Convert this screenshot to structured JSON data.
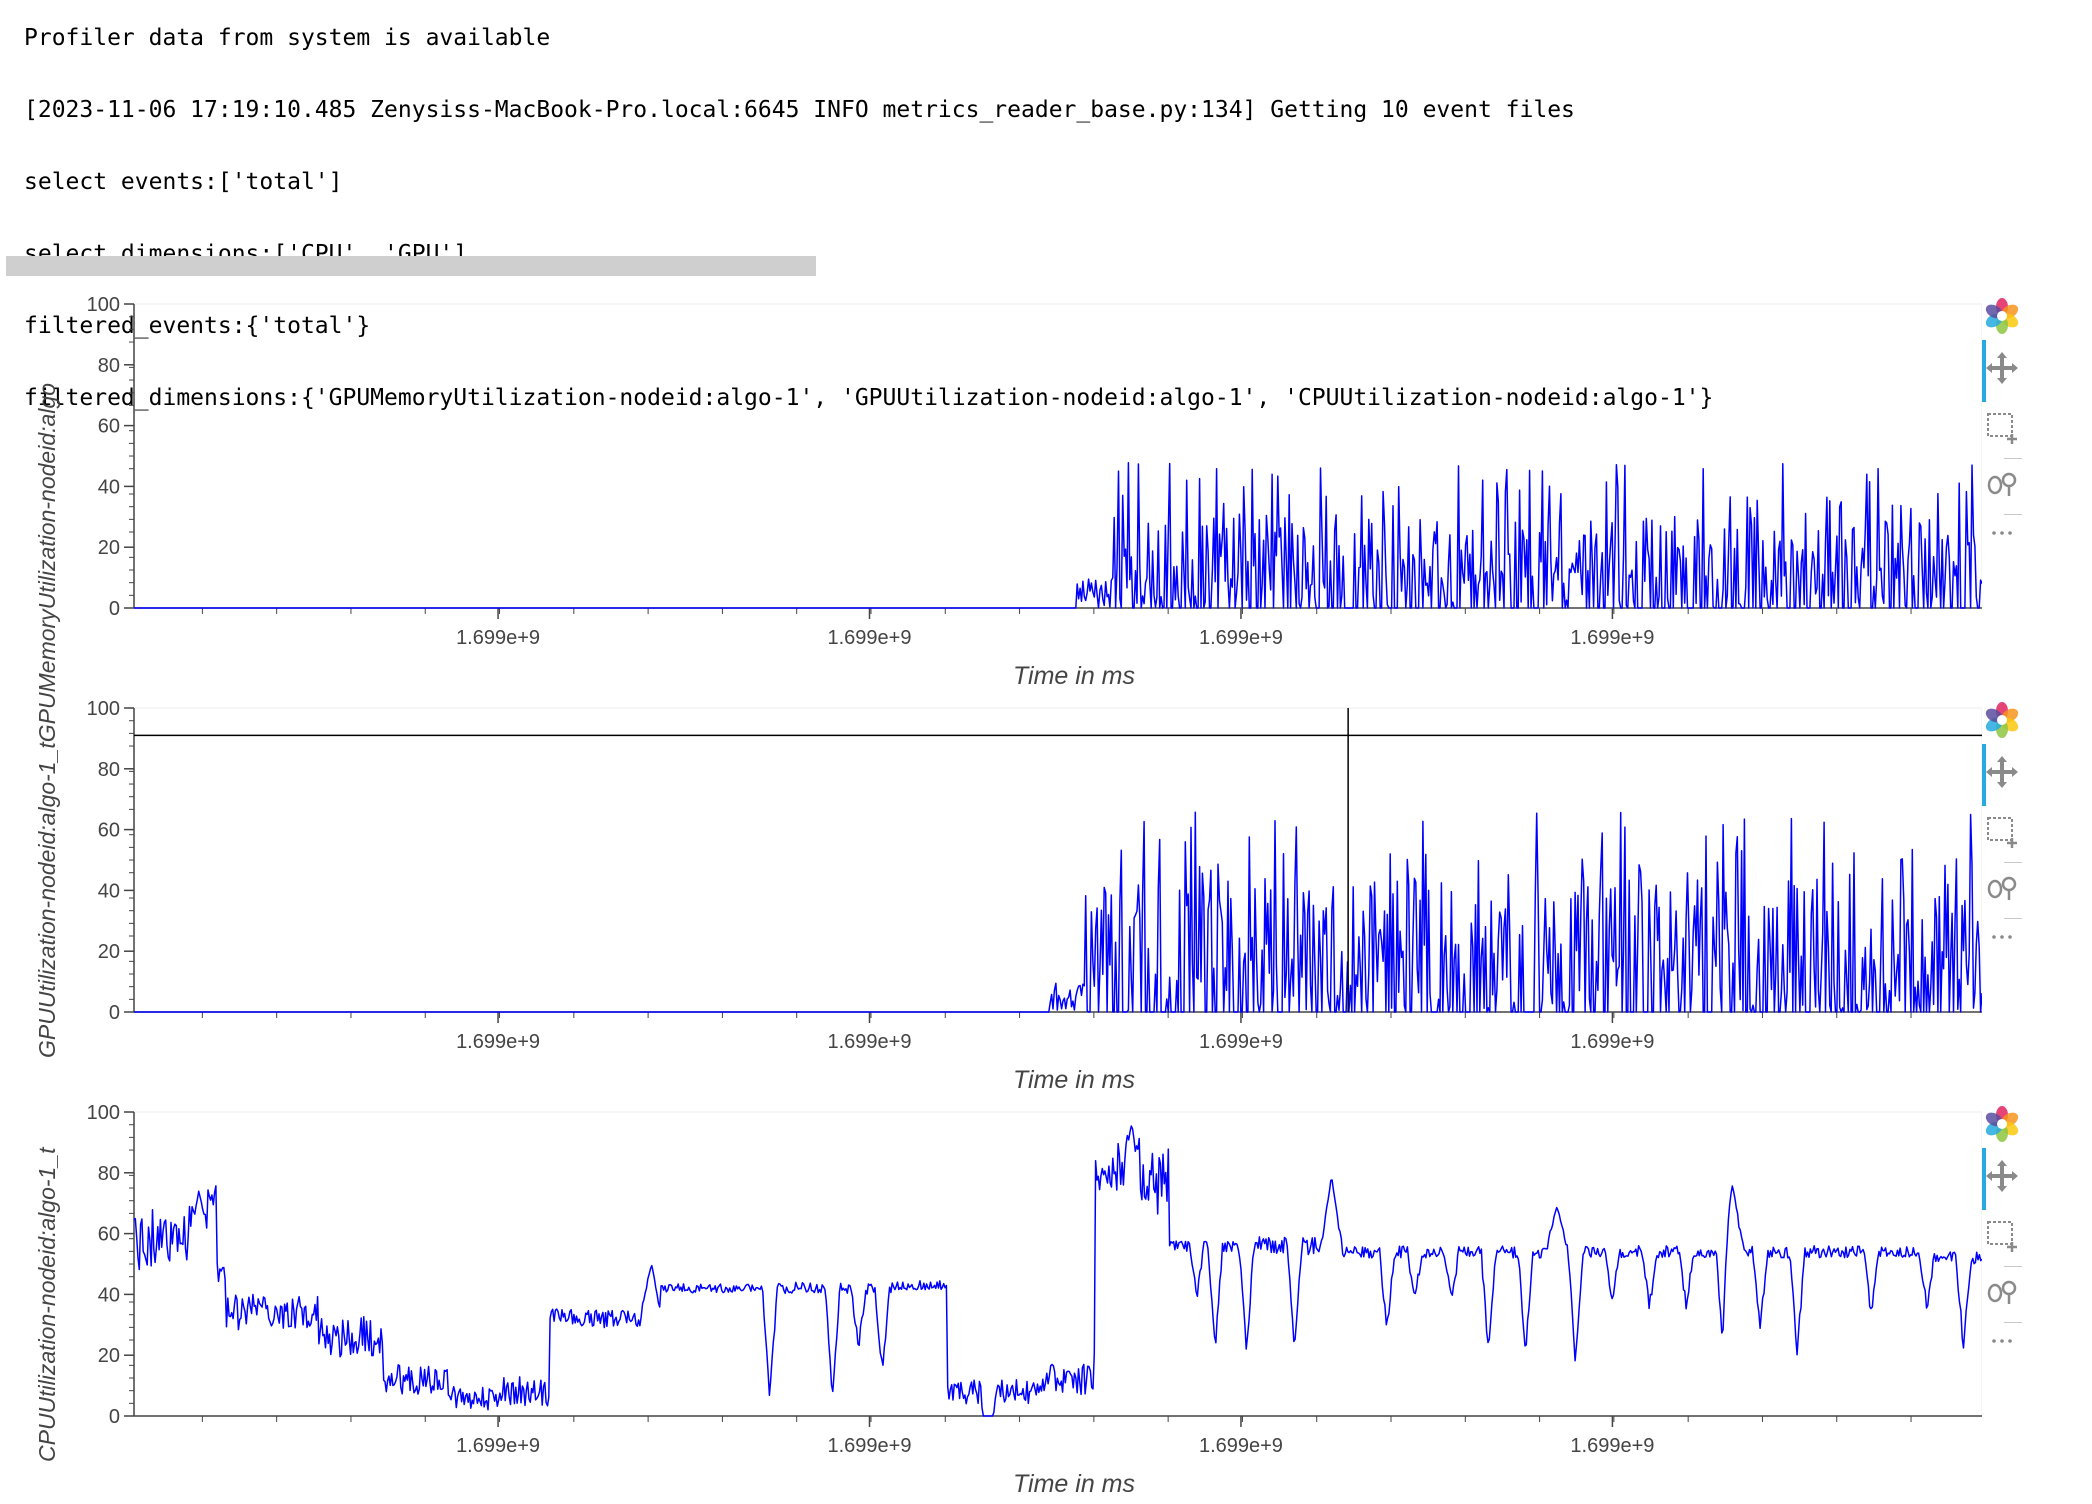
{
  "log_lines": [
    "Profiler data from system is available",
    "[2023-11-06 17:19:10.485 Zenysiss-MacBook-Pro.local:6645 INFO metrics_reader_base.py:134] Getting 10 event files",
    "select events:['total']",
    "select dimensions:['CPU', 'GPU']",
    "filtered_events:{'total'}",
    "filtered_dimensions:{'GPUMemoryUtilization-nodeid:algo-1', 'GPUUtilization-nodeid:algo-1', 'CPUUtilization-nodeid:algo-1'}"
  ],
  "progress": {
    "fraction": 1.0
  },
  "toolbar": {
    "logo": "bokeh-logo-icon",
    "tools": [
      "pan-icon",
      "box-zoom-icon",
      "hover-icon",
      "more-icon"
    ],
    "active_tool": "pan-icon"
  },
  "y_axis_labels": {
    "left_stack_upper": "GPUUtilization-nodeid:algo-1_tGPUMemoryUtilization-nodeid:algo",
    "left_stack_lower": "CPUUtilization-nodeid:algo-1_t"
  },
  "colors": {
    "line": "#0000ff",
    "axis": "#444444",
    "crosshair": "#000000",
    "progress": "#cfcfcf"
  },
  "chart_data": [
    {
      "type": "line",
      "series": [
        {
          "name": "GPUMemoryUtilization-nodeid:algo-1",
          "color": "#0000ff",
          "activity_start_fraction": 0.53,
          "base_level": 0,
          "spike_level": 30,
          "max": 48
        }
      ],
      "xlabel": "Time in ms",
      "x_tick_labels": [
        "1.699e+9",
        "1.699e+9",
        "1.699e+9",
        "1.699e+9"
      ],
      "y_ticks": [
        0,
        20,
        40,
        60,
        80,
        100
      ],
      "ylim": [
        0,
        100
      ],
      "grid": false,
      "crosshair": null
    },
    {
      "type": "line",
      "series": [
        {
          "name": "GPUUtilization-nodeid:algo-1",
          "color": "#0000ff",
          "activity_start_fraction": 0.515,
          "base_level": 0,
          "spike_level": 42,
          "max": 66
        }
      ],
      "xlabel": "Time in ms",
      "x_tick_labels": [
        "1.699e+9",
        "1.699e+9",
        "1.699e+9",
        "1.699e+9"
      ],
      "y_ticks": [
        0,
        20,
        40,
        60,
        80,
        100
      ],
      "ylim": [
        0,
        100
      ],
      "grid": false,
      "crosshair": {
        "x_fraction": 0.657,
        "y": 91
      }
    },
    {
      "type": "line",
      "series": [
        {
          "name": "CPUUtilization-nodeid:algo-1",
          "color": "#0000ff",
          "segments": [
            {
              "from": 0.0,
              "to": 0.04,
              "level": 58,
              "noise": 10
            },
            {
              "from": 0.04,
              "to": 0.045,
              "level": 72,
              "noise": 4
            },
            {
              "from": 0.045,
              "to": 0.05,
              "level": 48,
              "noise": 4
            },
            {
              "from": 0.05,
              "to": 0.1,
              "level": 34,
              "noise": 6
            },
            {
              "from": 0.1,
              "to": 0.135,
              "level": 26,
              "noise": 7
            },
            {
              "from": 0.135,
              "to": 0.17,
              "level": 12,
              "noise": 5
            },
            {
              "from": 0.17,
              "to": 0.2,
              "level": 6,
              "noise": 4
            },
            {
              "from": 0.2,
              "to": 0.225,
              "level": 8,
              "noise": 5
            },
            {
              "from": 0.225,
              "to": 0.23,
              "level": 34,
              "noise": 3
            },
            {
              "from": 0.23,
              "to": 0.285,
              "level": 32,
              "noise": 3
            },
            {
              "from": 0.285,
              "to": 0.345,
              "level": 42,
              "noise": 1.5
            },
            {
              "from": 0.345,
              "to": 0.41,
              "level": 42,
              "noise": 2
            },
            {
              "from": 0.41,
              "to": 0.44,
              "level": 43,
              "noise": 1.5
            },
            {
              "from": 0.44,
              "to": 0.49,
              "level": 8,
              "noise": 4
            },
            {
              "from": 0.49,
              "to": 0.52,
              "level": 12,
              "noise": 5
            },
            {
              "from": 0.52,
              "to": 0.56,
              "level": 78,
              "noise": 12
            },
            {
              "from": 0.56,
              "to": 0.6,
              "level": 56,
              "noise": 2
            },
            {
              "from": 0.6,
              "to": 0.64,
              "level": 56,
              "noise": 3
            },
            {
              "from": 0.64,
              "to": 0.97,
              "level": 54,
              "noise": 2
            },
            {
              "from": 0.97,
              "to": 1.0,
              "level": 52,
              "noise": 2
            }
          ],
          "dips": [
            0.344,
            0.378,
            0.392,
            0.405,
            0.462,
            0.575,
            0.585,
            0.602,
            0.628,
            0.678,
            0.693,
            0.713,
            0.733,
            0.753,
            0.78,
            0.8,
            0.82,
            0.84,
            0.86,
            0.88,
            0.9,
            0.94,
            0.97,
            0.99
          ],
          "peaks": [
            {
              "x": 0.035,
              "y": 74
            },
            {
              "x": 0.28,
              "y": 50
            },
            {
              "x": 0.54,
              "y": 96
            },
            {
              "x": 0.525,
              "y": 80
            },
            {
              "x": 0.648,
              "y": 79
            },
            {
              "x": 0.77,
              "y": 69
            },
            {
              "x": 0.865,
              "y": 76
            }
          ]
        }
      ],
      "xlabel": "Time in ms",
      "x_tick_labels": [
        "1.699e+9",
        "1.699e+9",
        "1.699e+9",
        "1.699e+9"
      ],
      "y_ticks": [
        0,
        20,
        40,
        60,
        80,
        100
      ],
      "ylim": [
        0,
        100
      ],
      "grid": false,
      "crosshair": null
    }
  ]
}
